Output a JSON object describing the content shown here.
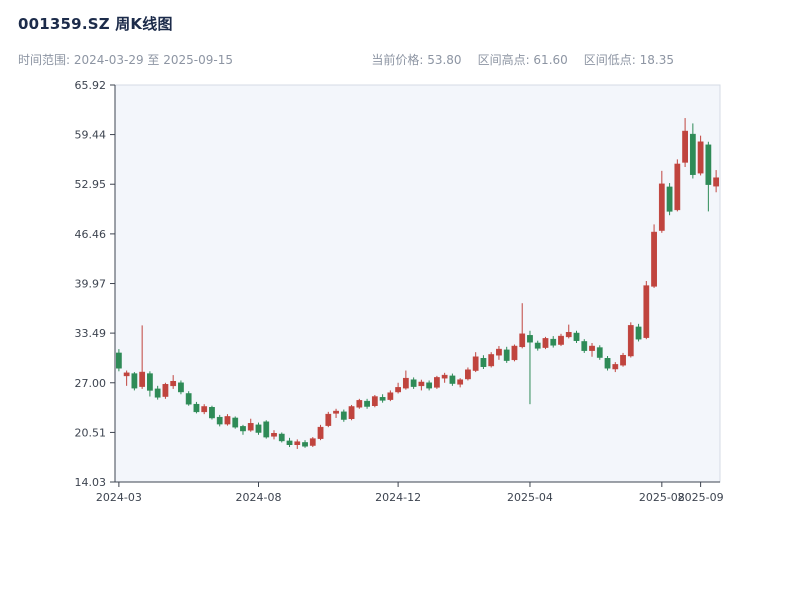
{
  "header": {
    "title": "001359.SZ 周K线图",
    "range_label": "时间范围: 2024-03-29 至 2025-09-15",
    "stats": [
      {
        "text": "当前价格: 53.80"
      },
      {
        "text": "区间高点: 61.60"
      },
      {
        "text": "区间低点: 18.35"
      }
    ]
  },
  "chart_data": {
    "type": "candlestick",
    "symbol": "001359.SZ",
    "interval": "weekly",
    "title": "001359.SZ 周K线图",
    "xlabel": "",
    "ylabel": "",
    "date_start": "2024-03-29",
    "date_end": "2025-09-15",
    "current_price": 53.8,
    "range_high": 61.6,
    "range_low": 18.35,
    "ylim": [
      14.03,
      65.92
    ],
    "y_ticks": [
      "65.92",
      "59.44",
      "52.95",
      "46.46",
      "39.97",
      "33.49",
      "27.00",
      "20.51",
      "14.03"
    ],
    "x_ticks": [
      "2024-03",
      "2024-08",
      "2024-12",
      "2025-04",
      "2025-08",
      "2025-09"
    ],
    "grid": false,
    "legend": "none",
    "colors": {
      "up": "#c0443e",
      "down": "#2e8b57"
    },
    "candle_columns": [
      "date",
      "open",
      "high",
      "low",
      "close"
    ],
    "candles": [
      [
        "2024-03-29",
        30.9,
        31.4,
        28.5,
        28.9
      ],
      [
        "2024-04-05",
        27.9,
        28.6,
        26.6,
        28.3
      ],
      [
        "2024-04-12",
        28.2,
        28.4,
        26.0,
        26.3
      ],
      [
        "2024-04-19",
        26.5,
        34.5,
        26.2,
        28.4
      ],
      [
        "2024-04-26",
        28.2,
        28.5,
        25.2,
        26.0
      ],
      [
        "2024-05-03",
        26.2,
        26.6,
        24.8,
        25.1
      ],
      [
        "2024-05-10",
        25.2,
        27.0,
        24.9,
        26.8
      ],
      [
        "2024-05-17",
        26.6,
        28.0,
        26.2,
        27.2
      ],
      [
        "2024-05-24",
        27.0,
        27.3,
        25.5,
        25.8
      ],
      [
        "2024-05-31",
        25.6,
        25.9,
        24.0,
        24.2
      ],
      [
        "2024-06-07",
        24.2,
        24.5,
        23.0,
        23.2
      ],
      [
        "2024-06-14",
        23.2,
        24.2,
        22.9,
        23.9
      ],
      [
        "2024-06-21",
        23.8,
        24.0,
        22.2,
        22.4
      ],
      [
        "2024-06-28",
        22.5,
        22.8,
        21.3,
        21.6
      ],
      [
        "2024-07-05",
        21.6,
        22.9,
        21.4,
        22.6
      ],
      [
        "2024-07-12",
        22.4,
        22.6,
        21.0,
        21.2
      ],
      [
        "2024-07-19",
        21.3,
        21.5,
        20.2,
        20.7
      ],
      [
        "2024-07-26",
        20.8,
        22.3,
        20.6,
        21.7
      ],
      [
        "2024-08-02",
        21.5,
        21.8,
        20.2,
        20.5
      ],
      [
        "2024-08-09",
        21.9,
        22.1,
        19.7,
        19.9
      ],
      [
        "2024-08-16",
        20.0,
        20.8,
        19.6,
        20.4
      ],
      [
        "2024-08-23",
        20.3,
        20.5,
        19.2,
        19.4
      ],
      [
        "2024-08-30",
        19.4,
        19.8,
        18.6,
        18.9
      ],
      [
        "2024-09-06",
        18.9,
        19.6,
        18.35,
        19.3
      ],
      [
        "2024-09-13",
        19.2,
        19.5,
        18.5,
        18.7
      ],
      [
        "2024-09-20",
        18.8,
        19.9,
        18.6,
        19.7
      ],
      [
        "2024-09-27",
        19.7,
        21.5,
        19.5,
        21.2
      ],
      [
        "2024-10-04",
        21.4,
        23.2,
        21.2,
        22.9
      ],
      [
        "2024-10-11",
        23.0,
        23.6,
        22.4,
        23.3
      ],
      [
        "2024-10-18",
        23.2,
        23.5,
        21.9,
        22.2
      ],
      [
        "2024-10-25",
        22.3,
        24.1,
        22.1,
        23.9
      ],
      [
        "2024-11-01",
        23.8,
        24.9,
        23.6,
        24.7
      ],
      [
        "2024-11-08",
        24.6,
        24.9,
        23.6,
        23.9
      ],
      [
        "2024-11-15",
        24.0,
        25.4,
        23.8,
        25.2
      ],
      [
        "2024-11-22",
        25.1,
        25.5,
        24.4,
        24.7
      ],
      [
        "2024-11-29",
        24.8,
        26.0,
        24.6,
        25.7
      ],
      [
        "2024-12-06",
        25.8,
        27.0,
        25.6,
        26.4
      ],
      [
        "2024-12-13",
        26.3,
        28.6,
        26.1,
        27.6
      ],
      [
        "2024-12-20",
        27.4,
        27.7,
        26.2,
        26.5
      ],
      [
        "2024-12-27",
        26.6,
        27.4,
        26.0,
        27.1
      ],
      [
        "2025-01-03",
        27.0,
        27.3,
        26.0,
        26.3
      ],
      [
        "2025-01-10",
        26.4,
        27.9,
        26.2,
        27.7
      ],
      [
        "2025-01-17",
        27.6,
        28.3,
        27.0,
        28.0
      ],
      [
        "2025-01-24",
        27.9,
        28.2,
        26.6,
        26.9
      ],
      [
        "2025-01-31",
        26.8,
        27.6,
        26.4,
        27.4
      ],
      [
        "2025-02-07",
        27.5,
        29.0,
        27.3,
        28.7
      ],
      [
        "2025-02-14",
        28.6,
        31.0,
        28.4,
        30.4
      ],
      [
        "2025-02-21",
        30.2,
        30.6,
        28.8,
        29.1
      ],
      [
        "2025-02-28",
        29.2,
        31.0,
        29.0,
        30.7
      ],
      [
        "2025-03-07",
        30.6,
        31.8,
        30.0,
        31.4
      ],
      [
        "2025-03-14",
        31.3,
        31.7,
        29.6,
        29.9
      ],
      [
        "2025-03-21",
        30.0,
        32.0,
        29.8,
        31.8
      ],
      [
        "2025-03-28",
        31.7,
        37.4,
        31.5,
        33.4
      ],
      [
        "2025-04-04",
        33.2,
        33.8,
        24.2,
        32.3
      ],
      [
        "2025-04-11",
        32.2,
        32.5,
        31.2,
        31.5
      ],
      [
        "2025-04-18",
        31.6,
        33.0,
        31.4,
        32.8
      ],
      [
        "2025-04-25",
        32.7,
        33.1,
        31.6,
        31.9
      ],
      [
        "2025-05-02",
        32.0,
        33.4,
        31.8,
        33.1
      ],
      [
        "2025-05-09",
        33.0,
        34.6,
        32.8,
        33.6
      ],
      [
        "2025-05-16",
        33.5,
        33.8,
        32.2,
        32.5
      ],
      [
        "2025-05-23",
        32.4,
        32.7,
        30.9,
        31.2
      ],
      [
        "2025-05-30",
        31.2,
        32.2,
        30.4,
        31.8
      ],
      [
        "2025-06-06",
        31.6,
        31.9,
        30.0,
        30.3
      ],
      [
        "2025-06-13",
        30.2,
        30.5,
        28.6,
        28.9
      ],
      [
        "2025-06-20",
        28.8,
        29.7,
        28.4,
        29.4
      ],
      [
        "2025-06-27",
        29.3,
        30.9,
        29.1,
        30.6
      ],
      [
        "2025-07-04",
        30.5,
        34.9,
        30.3,
        34.5
      ],
      [
        "2025-07-11",
        34.3,
        34.7,
        32.4,
        32.7
      ],
      [
        "2025-07-18",
        32.9,
        40.3,
        32.7,
        39.7
      ],
      [
        "2025-07-25",
        39.6,
        47.7,
        39.4,
        46.7
      ],
      [
        "2025-08-01",
        46.9,
        54.7,
        46.6,
        53.0
      ],
      [
        "2025-08-08",
        52.6,
        53.1,
        48.9,
        49.4
      ],
      [
        "2025-08-15",
        49.6,
        56.2,
        49.4,
        55.6
      ],
      [
        "2025-08-22",
        55.8,
        61.6,
        55.2,
        59.9
      ],
      [
        "2025-08-29",
        59.5,
        60.9,
        53.7,
        54.2
      ],
      [
        "2025-09-05",
        54.4,
        59.3,
        54.1,
        58.5
      ],
      [
        "2025-09-12",
        58.1,
        58.5,
        49.4,
        52.9
      ],
      [
        "2025-09-15",
        52.7,
        54.8,
        51.9,
        53.8
      ]
    ]
  }
}
